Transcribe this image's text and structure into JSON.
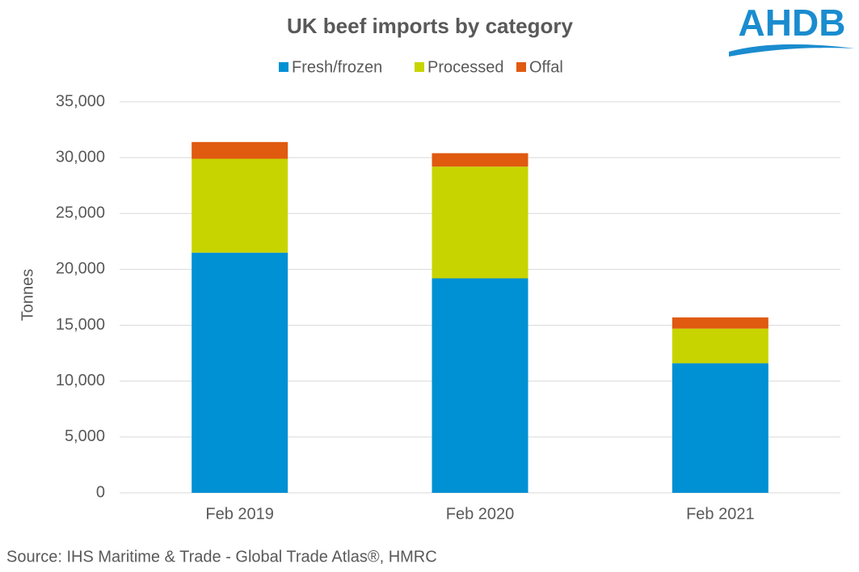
{
  "chart_data": {
    "type": "stacked-bar",
    "title": "UK beef imports by category",
    "logo": "AHDB",
    "ylabel": "Tonnes",
    "source": "Source: IHS Maritime & Trade - Global Trade Atlas®, HMRC",
    "categories": [
      "Feb 2019",
      "Feb 2020",
      "Feb 2021"
    ],
    "series": [
      {
        "name": "Fresh/frozen",
        "color": "#0090d4",
        "values": [
          21500,
          19200,
          11600
        ]
      },
      {
        "name": "Processed",
        "color": "#c8d400",
        "values": [
          8400,
          10000,
          3100
        ]
      },
      {
        "name": "Offal",
        "color": "#e05a10",
        "values": [
          1500,
          1200,
          1000
        ]
      }
    ],
    "ylim": [
      0,
      35000
    ],
    "yticks": [
      0,
      {
        "value": 5000,
        "label": "5,000"
      },
      {
        "value": 10000,
        "label": "10,000"
      },
      {
        "value": 15000,
        "label": "15,000"
      },
      {
        "value": 20000,
        "label": "20,000"
      },
      {
        "value": 25000,
        "label": "25,000"
      },
      {
        "value": 30000,
        "label": "30,000"
      },
      {
        "value": 35000,
        "label": "35,000"
      }
    ],
    "grid": true
  }
}
